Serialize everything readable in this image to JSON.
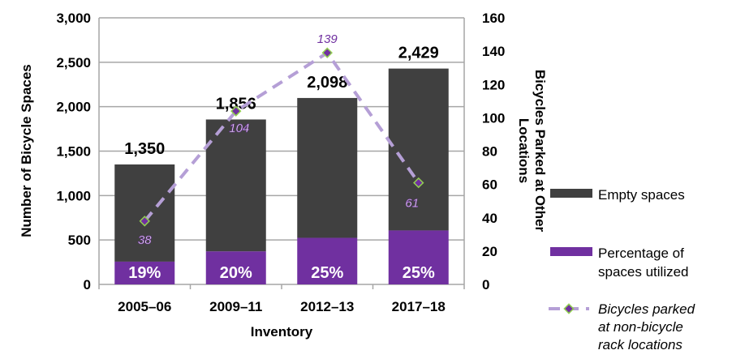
{
  "chart_data": {
    "type": "bar",
    "stacked": true,
    "categories": [
      "2005–06",
      "2009–11",
      "2012–13",
      "2017–18"
    ],
    "xlabel": "Inventory",
    "ylabel": "Number of Bicycle Spaces",
    "y2label": "Bicycles Parked at Other Locations",
    "ylim": [
      0,
      3000
    ],
    "y2lim": [
      0,
      160
    ],
    "yticks": [
      "0",
      "500",
      "1,000",
      "1,500",
      "2,000",
      "2,500",
      "3,000"
    ],
    "y2ticks": [
      "0",
      "20",
      "40",
      "60",
      "80",
      "100",
      "120",
      "140",
      "160"
    ],
    "grid": true,
    "legend_position": "right",
    "totals": [
      1350,
      1856,
      2098,
      2429
    ],
    "total_labels": [
      "1,350",
      "1,856",
      "2,098",
      "2,429"
    ],
    "series": [
      {
        "name": "Empty spaces",
        "color": "#404040",
        "values": [
          1094,
          1485,
          1574,
          1822
        ]
      },
      {
        "name": "Percentage of spaces utilized",
        "color": "#7030a0",
        "values": [
          256,
          371,
          524,
          607
        ],
        "labels": [
          "19%",
          "20%",
          "25%",
          "25%"
        ]
      },
      {
        "name": "Bicycles parked at non-bicycle rack locations",
        "type": "line",
        "axis": "right",
        "color": "#b59fd6",
        "marker_color": "#7030a0",
        "marker_edge": "#92d050",
        "values": [
          38,
          104,
          139,
          61
        ],
        "labels": [
          "38",
          "104",
          "139",
          "61"
        ]
      }
    ]
  }
}
